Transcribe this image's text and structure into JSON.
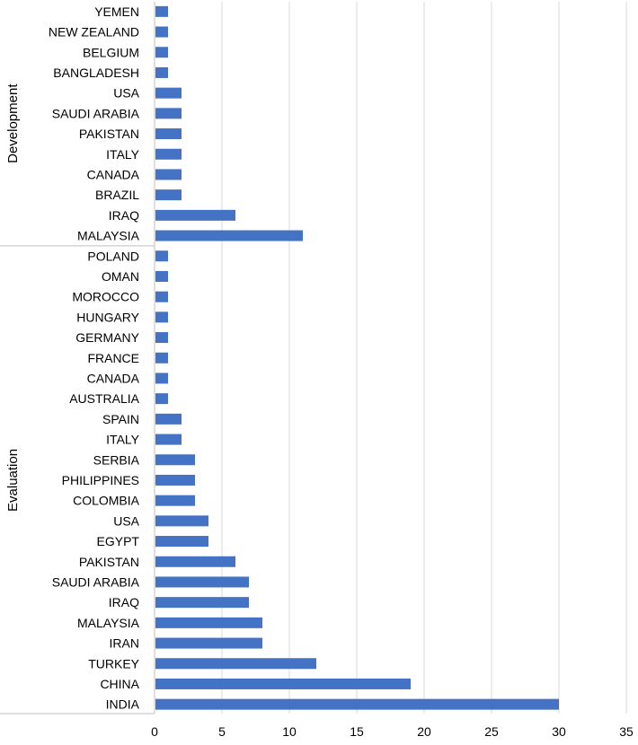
{
  "chart_data": {
    "type": "bar",
    "orientation": "horizontal",
    "title": "",
    "xlabel": "",
    "ylabel": "",
    "xlim": [
      0,
      35
    ],
    "x_ticks": [
      "0",
      "5",
      "10",
      "15",
      "20",
      "25",
      "30",
      "35"
    ],
    "grid": "vertical",
    "legend": "none",
    "bar_color": "#4472c4",
    "groups": [
      {
        "name": "Development",
        "categories": [
          "YEMEN",
          "NEW ZEALAND",
          "BELGIUM",
          "BANGLADESH",
          "USA",
          "SAUDI ARABIA",
          "PAKISTAN",
          "ITALY",
          "CANADA",
          "BRAZIL",
          "IRAQ",
          "MALAYSIA"
        ],
        "values": [
          1,
          1,
          1,
          1,
          2,
          2,
          2,
          2,
          2,
          2,
          6,
          11
        ]
      },
      {
        "name": "Evaluation",
        "categories": [
          "POLAND",
          "OMAN",
          "MOROCCO",
          "HUNGARY",
          "GERMANY",
          "FRANCE",
          "CANADA",
          "AUSTRALIA",
          "SPAIN",
          "ITALY",
          "SERBIA",
          "PHILIPPINES",
          "COLOMBIA",
          "USA",
          "EGYPT",
          "PAKISTAN",
          "SAUDI ARABIA",
          "IRAQ",
          "MALAYSIA",
          "IRAN",
          "TURKEY",
          "CHINA",
          "INDIA"
        ],
        "values": [
          1,
          1,
          1,
          1,
          1,
          1,
          1,
          1,
          2,
          2,
          3,
          3,
          3,
          4,
          4,
          6,
          7,
          7,
          8,
          8,
          12,
          19,
          30
        ]
      }
    ]
  }
}
